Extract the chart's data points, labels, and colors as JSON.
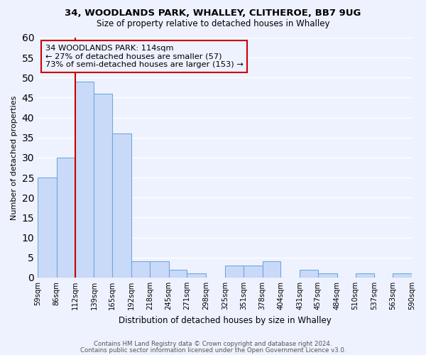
{
  "title1": "34, WOODLANDS PARK, WHALLEY, CLITHEROE, BB7 9UG",
  "title2": "Size of property relative to detached houses in Whalley",
  "xlabel": "Distribution of detached houses by size in Whalley",
  "ylabel": "Number of detached properties",
  "bin_edges": [
    59,
    86,
    112,
    139,
    165,
    192,
    218,
    245,
    271,
    298,
    325,
    351,
    378,
    404,
    431,
    457,
    484,
    510,
    537,
    563,
    590
  ],
  "bar_values": [
    25,
    30,
    49,
    46,
    36,
    4,
    4,
    2,
    1,
    0,
    3,
    3,
    4,
    0,
    2,
    1,
    0,
    1,
    0,
    1
  ],
  "bar_color": "#c9daf8",
  "bar_edge_color": "#6fa8dc",
  "marker_bin_index": 2,
  "marker_color": "#cc0000",
  "ylim": [
    0,
    60
  ],
  "yticks": [
    0,
    5,
    10,
    15,
    20,
    25,
    30,
    35,
    40,
    45,
    50,
    55,
    60
  ],
  "annotation_title": "34 WOODLANDS PARK: 114sqm",
  "annotation_line1": "← 27% of detached houses are smaller (57)",
  "annotation_line2": "73% of semi-detached houses are larger (153) →",
  "footer1": "Contains HM Land Registry data © Crown copyright and database right 2024.",
  "footer2": "Contains public sector information licensed under the Open Government Licence v3.0.",
  "background_color": "#eef2ff"
}
